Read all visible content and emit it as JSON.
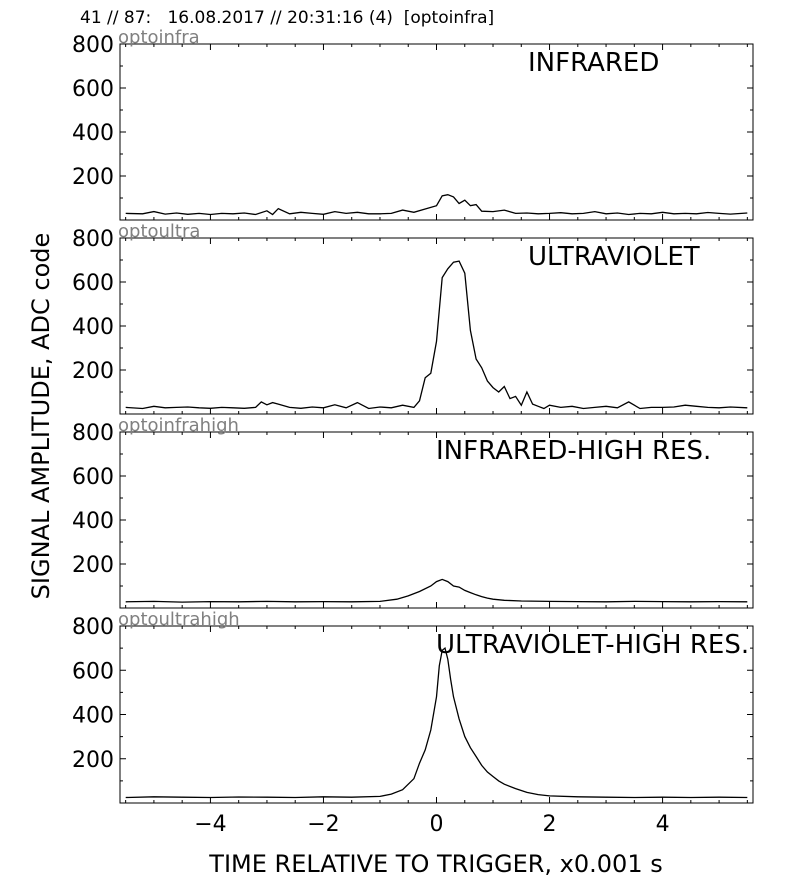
{
  "header": {
    "text": "41 // 87:   16.08.2017 // 20:31:16 (4)  [optoinfra]"
  },
  "figure": {
    "ylabel": "SIGNAL AMPLITUDE,  ADC code",
    "xlabel": "TIME RELATIVE TO TRIGGER,   x0.001 s",
    "x_ticks": [
      -4,
      -2,
      0,
      2,
      4
    ],
    "x_tick_labels": [
      "−4",
      "−2",
      "0",
      "2",
      "4"
    ],
    "y_ticks": [
      200,
      400,
      600,
      800
    ],
    "y_tick_labels": [
      "200",
      "400",
      "600",
      "800"
    ],
    "line_color": "#000000",
    "tag_color": "#808080"
  },
  "chart_data": [
    {
      "type": "line",
      "id": "infrared",
      "tag": "optoinfra",
      "title": "INFRARED",
      "xlim": [
        -5.6,
        5.6
      ],
      "ylim": [
        0,
        800
      ],
      "series": [
        {
          "x": [
            -5.5,
            -5.2,
            -5.0,
            -4.8,
            -4.6,
            -4.4,
            -4.2,
            -4.0,
            -3.8,
            -3.6,
            -3.4,
            -3.2,
            -3.0,
            -2.9,
            -2.8,
            -2.6,
            -2.4,
            -2.2,
            -2.0,
            -1.8,
            -1.6,
            -1.4,
            -1.2,
            -1.0,
            -0.8,
            -0.6,
            -0.4,
            -0.2,
            0.0,
            0.1,
            0.2,
            0.3,
            0.4,
            0.5,
            0.6,
            0.7,
            0.8,
            1.0,
            1.2,
            1.4,
            1.6,
            1.8,
            2.0,
            2.2,
            2.4,
            2.6,
            2.8,
            3.0,
            3.2,
            3.4,
            3.6,
            3.8,
            4.0,
            4.2,
            4.4,
            4.6,
            4.8,
            5.0,
            5.2,
            5.5
          ],
          "y": [
            30,
            28,
            38,
            27,
            32,
            26,
            30,
            25,
            30,
            28,
            32,
            25,
            42,
            25,
            52,
            28,
            35,
            30,
            26,
            38,
            30,
            35,
            28,
            28,
            30,
            45,
            35,
            50,
            65,
            110,
            115,
            105,
            75,
            90,
            65,
            70,
            40,
            38,
            45,
            30,
            32,
            28,
            30,
            33,
            28,
            30,
            38,
            28,
            32,
            25,
            30,
            28,
            35,
            28,
            30,
            28,
            34,
            30,
            27,
            32
          ]
        }
      ]
    },
    {
      "type": "line",
      "id": "ultraviolet",
      "tag": "optoultra",
      "title": "ULTRAVIOLET",
      "xlim": [
        -5.6,
        5.6
      ],
      "ylim": [
        0,
        800
      ],
      "series": [
        {
          "x": [
            -5.5,
            -5.2,
            -5.0,
            -4.8,
            -4.6,
            -4.4,
            -4.2,
            -4.0,
            -3.8,
            -3.6,
            -3.4,
            -3.2,
            -3.1,
            -3.0,
            -2.9,
            -2.8,
            -2.6,
            -2.4,
            -2.2,
            -2.0,
            -1.8,
            -1.6,
            -1.4,
            -1.2,
            -1.0,
            -0.8,
            -0.6,
            -0.4,
            -0.3,
            -0.2,
            -0.1,
            0.0,
            0.1,
            0.2,
            0.3,
            0.4,
            0.5,
            0.6,
            0.7,
            0.8,
            0.9,
            1.0,
            1.1,
            1.2,
            1.3,
            1.4,
            1.5,
            1.6,
            1.7,
            1.8,
            1.9,
            2.0,
            2.2,
            2.4,
            2.6,
            2.8,
            3.0,
            3.2,
            3.4,
            3.6,
            3.8,
            4.0,
            4.2,
            4.4,
            4.6,
            4.8,
            5.0,
            5.2,
            5.5
          ],
          "y": [
            30,
            25,
            35,
            28,
            30,
            32,
            28,
            26,
            30,
            28,
            26,
            30,
            55,
            42,
            52,
            45,
            30,
            26,
            32,
            28,
            42,
            28,
            52,
            25,
            32,
            28,
            40,
            30,
            60,
            165,
            185,
            330,
            620,
            660,
            690,
            695,
            640,
            380,
            250,
            210,
            150,
            120,
            100,
            125,
            70,
            80,
            40,
            100,
            45,
            35,
            25,
            40,
            30,
            35,
            25,
            30,
            35,
            28,
            55,
            25,
            30,
            30,
            32,
            40,
            35,
            30,
            28,
            32,
            28
          ]
        }
      ]
    },
    {
      "type": "line",
      "id": "infrared-high",
      "tag": "optoinfrahigh",
      "title": "INFRARED-HIGH RES.",
      "xlim": [
        -5.6,
        5.6
      ],
      "ylim": [
        0,
        800
      ],
      "series": [
        {
          "x": [
            -5.5,
            -5.0,
            -4.5,
            -4.0,
            -3.5,
            -3.0,
            -2.5,
            -2.0,
            -1.5,
            -1.0,
            -0.7,
            -0.5,
            -0.3,
            -0.1,
            0.0,
            0.1,
            0.2,
            0.3,
            0.4,
            0.5,
            0.6,
            0.7,
            0.8,
            0.9,
            1.0,
            1.2,
            1.5,
            2.0,
            2.5,
            3.0,
            3.5,
            4.0,
            4.5,
            5.0,
            5.5
          ],
          "y": [
            28,
            30,
            27,
            29,
            28,
            30,
            28,
            29,
            28,
            30,
            40,
            55,
            75,
            100,
            120,
            130,
            120,
            100,
            95,
            80,
            70,
            60,
            52,
            45,
            40,
            35,
            32,
            30,
            29,
            28,
            30,
            29,
            28,
            29,
            28
          ]
        }
      ]
    },
    {
      "type": "line",
      "id": "ultraviolet-high",
      "tag": "optoultrahigh",
      "title": "ULTRAVIOLET-HIGH RES.",
      "xlim": [
        -5.6,
        5.6
      ],
      "ylim": [
        0,
        800
      ],
      "series": [
        {
          "x": [
            -5.5,
            -5.0,
            -4.5,
            -4.0,
            -3.5,
            -3.0,
            -2.5,
            -2.0,
            -1.5,
            -1.0,
            -0.8,
            -0.6,
            -0.4,
            -0.3,
            -0.2,
            -0.1,
            0.0,
            0.05,
            0.1,
            0.15,
            0.2,
            0.25,
            0.3,
            0.4,
            0.5,
            0.6,
            0.7,
            0.8,
            0.9,
            1.0,
            1.1,
            1.2,
            1.4,
            1.6,
            1.8,
            2.0,
            2.5,
            3.0,
            3.5,
            4.0,
            4.5,
            5.0,
            5.5
          ],
          "y": [
            25,
            28,
            26,
            25,
            27,
            26,
            25,
            28,
            26,
            30,
            40,
            60,
            110,
            180,
            240,
            330,
            480,
            620,
            690,
            700,
            650,
            560,
            480,
            380,
            300,
            250,
            210,
            170,
            140,
            120,
            100,
            85,
            65,
            48,
            38,
            32,
            28,
            26,
            25,
            26,
            25,
            26,
            25
          ]
        }
      ]
    }
  ]
}
